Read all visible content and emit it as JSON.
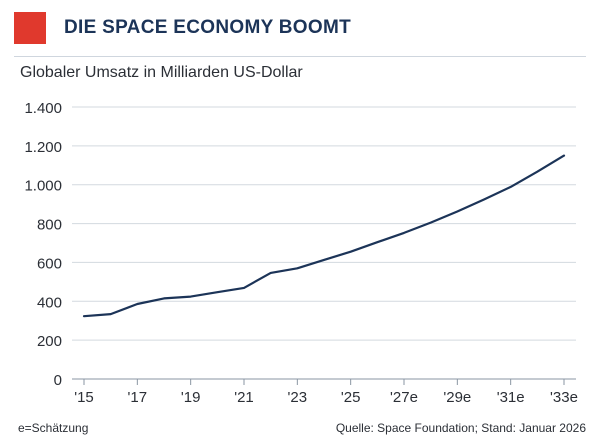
{
  "header": {
    "title": "DIE SPACE ECONOMY BOOMT",
    "accent_color": "#e0392d"
  },
  "chart_data": {
    "type": "line",
    "subtitle": "Globaler Umsatz in Milliarden US-Dollar",
    "ylim": [
      0,
      1400
    ],
    "y_ticks": [
      0,
      200,
      400,
      600,
      800,
      1000,
      1200,
      1400
    ],
    "y_tick_labels": [
      "0",
      "200",
      "400",
      "600",
      "800",
      "1.000",
      "1.200",
      "1.400"
    ],
    "x_range": [
      2015,
      2033
    ],
    "x_ticks": [
      2015,
      2017,
      2019,
      2021,
      2023,
      2025,
      2027,
      2029,
      2031,
      2033
    ],
    "x_tick_labels": [
      "'15",
      "'17",
      "'19",
      "'21",
      "'23",
      "'25",
      "'27e",
      "'29e",
      "'31e",
      "'33e"
    ],
    "grid": "horizontal",
    "line_color": "#1c3458",
    "series": [
      {
        "x": [
          2015,
          2016,
          2017,
          2018,
          2019,
          2020,
          2021,
          2022,
          2023,
          2024,
          2025,
          2026,
          2027,
          2028,
          2029,
          2030,
          2031,
          2032,
          2033
        ],
        "values": [
          323,
          334,
          386,
          415,
          424,
          447,
          469,
          546,
          570,
          613,
          655,
          704,
          752,
          805,
          862,
          924,
          989,
          1067,
          1150
        ]
      }
    ]
  },
  "footer": {
    "note": "e=Schätzung",
    "source": "Quelle: Space Foundation; Stand: Januar 2026"
  }
}
